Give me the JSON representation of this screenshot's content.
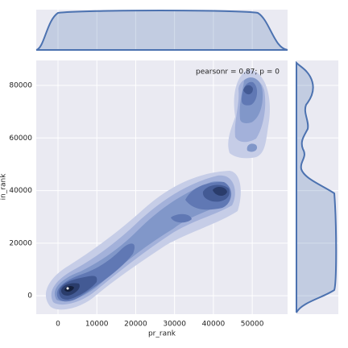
{
  "chart_data": {
    "type": "kde",
    "annotation": "pearsonr = 0.87; p = 0",
    "xlabel": "pr_rank",
    "ylabel": "in_rank",
    "xlim": [
      -5600,
      59100
    ],
    "xticks": [
      0,
      10000,
      20000,
      30000,
      40000,
      50000
    ],
    "ylim": [
      -7000,
      89500
    ],
    "yticks": [
      0,
      20000,
      40000,
      60000,
      80000
    ],
    "grid": true,
    "color": "#4c72b0"
  }
}
